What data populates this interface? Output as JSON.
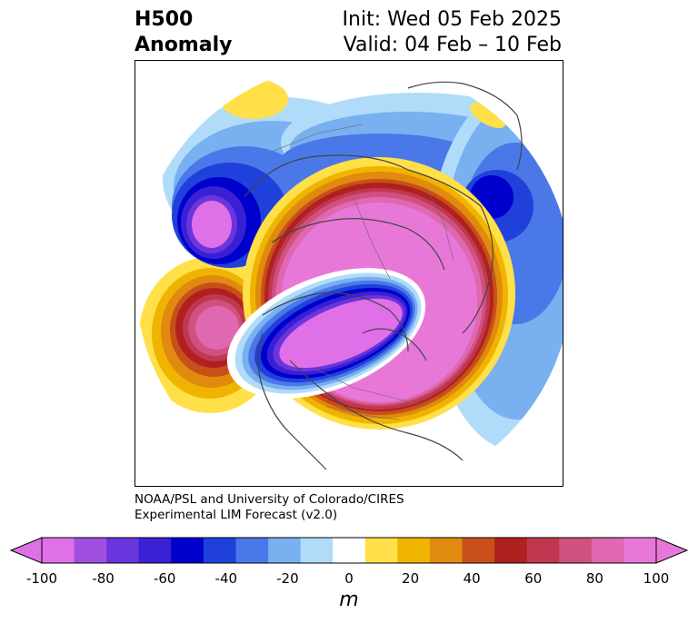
{
  "title": {
    "left_line1": "H500",
    "left_line2": "Anomaly",
    "right_line1": "Init: Wed 05 Feb 2025",
    "right_line2": "Valid: 04 Feb – 10 Feb"
  },
  "credit": {
    "line1": "NOAA/PSL and University of Colorado/CIRES",
    "line2": "Experimental LIM Forecast (v2.0)"
  },
  "colorbar": {
    "units": "m",
    "tick_labels": [
      "-100",
      "-80",
      "-60",
      "-40",
      "-20",
      "0",
      "20",
      "40",
      "60",
      "80",
      "100"
    ],
    "levels": [
      -100,
      -90,
      -80,
      -70,
      -60,
      -50,
      -40,
      -30,
      -20,
      -10,
      10,
      20,
      30,
      40,
      50,
      60,
      70,
      80,
      90,
      100
    ],
    "colors": [
      "#e070e8",
      "#a050e0",
      "#6a35dc",
      "#3a20d4",
      "#0000cc",
      "#2040dc",
      "#4a78e8",
      "#78b0f0",
      "#b0dcfa",
      "#ffffff",
      "#ffe048",
      "#f0b400",
      "#e08a10",
      "#c85018",
      "#b02020",
      "#c03850",
      "#d05080",
      "#e068b0",
      "#e878d8"
    ],
    "extend": "both"
  },
  "map": {
    "projection": "north-polar-stereographic",
    "field": "500 hPa geopotential height anomaly"
  }
}
